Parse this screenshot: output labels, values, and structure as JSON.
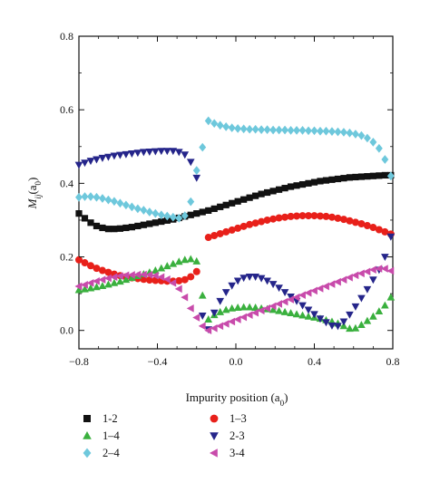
{
  "chart_data": {
    "type": "scatter",
    "xlabel": "Impurity position (a",
    "xlabel_sub": "0",
    "xlabel_end": ")",
    "ylabel": "M",
    "ylabel_sub": "ij",
    "ylabel_arg": "(a",
    "ylabel_arg_sub": "0",
    "ylabel_end": ")",
    "xlim": [
      -0.8,
      0.8
    ],
    "ylim": [
      -0.05,
      0.8
    ],
    "x_ticks": [
      -0.8,
      -0.4,
      0.0,
      0.4,
      0.8
    ],
    "x_tick_labels": [
      "−0.8",
      "−0.4",
      "0.0",
      "0.4",
      "0.8"
    ],
    "y_ticks": [
      0.0,
      0.2,
      0.4,
      0.6,
      0.8
    ],
    "y_tick_labels": [
      "0.0",
      "0.2",
      "0.4",
      "0.6",
      "0.8"
    ],
    "grid": false,
    "legend_placement": "below-plot",
    "series": [
      {
        "name": "1-2",
        "marker": "square",
        "color": "#111111",
        "x": [
          -0.8,
          -0.77,
          -0.74,
          -0.71,
          -0.68,
          -0.65,
          -0.62,
          -0.59,
          -0.56,
          -0.53,
          -0.5,
          -0.47,
          -0.44,
          -0.41,
          -0.38,
          -0.35,
          -0.32,
          -0.29,
          -0.26,
          -0.23,
          -0.2,
          -0.17,
          -0.14,
          -0.11,
          -0.08,
          -0.05,
          -0.02,
          0.01,
          0.04,
          0.07,
          0.1,
          0.13,
          0.16,
          0.19,
          0.22,
          0.25,
          0.28,
          0.31,
          0.34,
          0.37,
          0.4,
          0.43,
          0.46,
          0.49,
          0.52,
          0.55,
          0.58,
          0.61,
          0.64,
          0.67,
          0.7,
          0.73,
          0.76,
          0.79
        ],
        "y": [
          0.318,
          0.305,
          0.293,
          0.284,
          0.279,
          0.276,
          0.276,
          0.277,
          0.279,
          0.281,
          0.284,
          0.287,
          0.29,
          0.293,
          0.296,
          0.299,
          0.302,
          0.306,
          0.31,
          0.314,
          0.318,
          0.322,
          0.326,
          0.331,
          0.336,
          0.341,
          0.346,
          0.351,
          0.356,
          0.361,
          0.366,
          0.371,
          0.375,
          0.379,
          0.383,
          0.387,
          0.391,
          0.394,
          0.397,
          0.4,
          0.403,
          0.406,
          0.408,
          0.41,
          0.412,
          0.414,
          0.416,
          0.417,
          0.418,
          0.419,
          0.42,
          0.421,
          0.422,
          0.422
        ]
      },
      {
        "name": "1–3",
        "marker": "circle",
        "color": "#e8201a",
        "x": [
          -0.8,
          -0.77,
          -0.74,
          -0.71,
          -0.68,
          -0.65,
          -0.62,
          -0.59,
          -0.56,
          -0.53,
          -0.5,
          -0.47,
          -0.44,
          -0.41,
          -0.38,
          -0.35,
          -0.32,
          -0.29,
          -0.26,
          -0.23,
          -0.2,
          -0.14,
          -0.11,
          -0.08,
          -0.05,
          -0.02,
          0.01,
          0.04,
          0.07,
          0.1,
          0.13,
          0.16,
          0.19,
          0.22,
          0.25,
          0.28,
          0.31,
          0.34,
          0.37,
          0.4,
          0.43,
          0.46,
          0.49,
          0.52,
          0.55,
          0.58,
          0.61,
          0.64,
          0.67,
          0.7,
          0.73,
          0.76,
          0.79
        ],
        "y": [
          0.192,
          0.184,
          0.176,
          0.169,
          0.163,
          0.158,
          0.153,
          0.149,
          0.146,
          0.143,
          0.141,
          0.139,
          0.137,
          0.136,
          0.135,
          0.134,
          0.134,
          0.135,
          0.138,
          0.146,
          0.16,
          0.253,
          0.258,
          0.263,
          0.268,
          0.273,
          0.278,
          0.283,
          0.288,
          0.292,
          0.296,
          0.3,
          0.303,
          0.306,
          0.308,
          0.31,
          0.311,
          0.312,
          0.312,
          0.312,
          0.311,
          0.31,
          0.308,
          0.305,
          0.302,
          0.298,
          0.294,
          0.29,
          0.285,
          0.28,
          0.274,
          0.268,
          0.262
        ]
      },
      {
        "name": "1–4",
        "marker": "triangle-up",
        "color": "#3ab03e",
        "x": [
          -0.8,
          -0.77,
          -0.74,
          -0.71,
          -0.68,
          -0.65,
          -0.62,
          -0.59,
          -0.56,
          -0.53,
          -0.5,
          -0.47,
          -0.44,
          -0.41,
          -0.38,
          -0.35,
          -0.32,
          -0.29,
          -0.26,
          -0.23,
          -0.2,
          -0.17,
          -0.14,
          -0.11,
          -0.08,
          -0.05,
          -0.02,
          0.01,
          0.04,
          0.07,
          0.1,
          0.13,
          0.16,
          0.19,
          0.22,
          0.25,
          0.28,
          0.31,
          0.34,
          0.37,
          0.4,
          0.43,
          0.46,
          0.49,
          0.52,
          0.55,
          0.58,
          0.61,
          0.64,
          0.67,
          0.7,
          0.73,
          0.76,
          0.79
        ],
        "y": [
          0.11,
          0.112,
          0.115,
          0.118,
          0.121,
          0.125,
          0.129,
          0.133,
          0.138,
          0.143,
          0.148,
          0.153,
          0.158,
          0.163,
          0.169,
          0.175,
          0.181,
          0.187,
          0.192,
          0.194,
          0.188,
          0.095,
          0.03,
          0.042,
          0.05,
          0.056,
          0.06,
          0.062,
          0.063,
          0.063,
          0.062,
          0.06,
          0.058,
          0.056,
          0.053,
          0.05,
          0.047,
          0.044,
          0.041,
          0.038,
          0.035,
          0.032,
          0.028,
          0.024,
          0.019,
          0.012,
          0.005,
          0.006,
          0.015,
          0.026,
          0.038,
          0.052,
          0.068,
          0.09
        ]
      },
      {
        "name": "2-3",
        "marker": "triangle-down",
        "color": "#25258a",
        "x": [
          -0.8,
          -0.77,
          -0.74,
          -0.71,
          -0.68,
          -0.65,
          -0.62,
          -0.59,
          -0.56,
          -0.53,
          -0.5,
          -0.47,
          -0.44,
          -0.41,
          -0.38,
          -0.35,
          -0.32,
          -0.29,
          -0.26,
          -0.23,
          -0.2,
          -0.17,
          -0.14,
          -0.11,
          -0.08,
          -0.05,
          -0.02,
          0.01,
          0.04,
          0.07,
          0.1,
          0.13,
          0.16,
          0.19,
          0.22,
          0.25,
          0.28,
          0.31,
          0.34,
          0.37,
          0.4,
          0.43,
          0.46,
          0.49,
          0.52,
          0.55,
          0.58,
          0.61,
          0.64,
          0.67,
          0.7,
          0.73,
          0.76,
          0.79
        ],
        "y": [
          0.45,
          0.456,
          0.461,
          0.465,
          0.469,
          0.472,
          0.475,
          0.477,
          0.479,
          0.481,
          0.483,
          0.485,
          0.486,
          0.487,
          0.488,
          0.488,
          0.488,
          0.485,
          0.478,
          0.458,
          0.415,
          0.04,
          0.003,
          0.048,
          0.08,
          0.104,
          0.122,
          0.135,
          0.143,
          0.146,
          0.146,
          0.142,
          0.135,
          0.126,
          0.116,
          0.104,
          0.092,
          0.08,
          0.068,
          0.056,
          0.044,
          0.032,
          0.022,
          0.013,
          0.012,
          0.024,
          0.043,
          0.065,
          0.088,
          0.112,
          0.138,
          0.165,
          0.2,
          0.255
        ]
      },
      {
        "name": "2–4",
        "marker": "diamond",
        "color": "#6ec8dc",
        "x": [
          -0.8,
          -0.77,
          -0.74,
          -0.71,
          -0.68,
          -0.65,
          -0.62,
          -0.59,
          -0.56,
          -0.53,
          -0.5,
          -0.47,
          -0.44,
          -0.41,
          -0.38,
          -0.35,
          -0.32,
          -0.29,
          -0.26,
          -0.23,
          -0.2,
          -0.17,
          -0.14,
          -0.11,
          -0.08,
          -0.05,
          -0.02,
          0.01,
          0.04,
          0.07,
          0.1,
          0.13,
          0.16,
          0.19,
          0.22,
          0.25,
          0.28,
          0.31,
          0.34,
          0.37,
          0.4,
          0.43,
          0.46,
          0.49,
          0.52,
          0.55,
          0.58,
          0.61,
          0.64,
          0.67,
          0.7,
          0.73,
          0.76,
          0.79
        ],
        "y": [
          0.362,
          0.364,
          0.364,
          0.362,
          0.359,
          0.355,
          0.351,
          0.346,
          0.341,
          0.336,
          0.331,
          0.327,
          0.322,
          0.318,
          0.314,
          0.311,
          0.308,
          0.305,
          0.312,
          0.35,
          0.435,
          0.498,
          0.57,
          0.563,
          0.558,
          0.554,
          0.551,
          0.549,
          0.548,
          0.547,
          0.547,
          0.546,
          0.546,
          0.545,
          0.545,
          0.545,
          0.544,
          0.544,
          0.544,
          0.543,
          0.543,
          0.542,
          0.542,
          0.541,
          0.54,
          0.539,
          0.537,
          0.534,
          0.53,
          0.523,
          0.512,
          0.495,
          0.465,
          0.42
        ]
      },
      {
        "name": "3-4",
        "marker": "triangle-left",
        "color": "#c84bab",
        "x": [
          -0.8,
          -0.77,
          -0.74,
          -0.71,
          -0.68,
          -0.65,
          -0.62,
          -0.59,
          -0.56,
          -0.53,
          -0.5,
          -0.47,
          -0.44,
          -0.41,
          -0.38,
          -0.35,
          -0.32,
          -0.29,
          -0.26,
          -0.23,
          -0.2,
          -0.17,
          -0.14,
          -0.11,
          -0.08,
          -0.05,
          -0.02,
          0.01,
          0.04,
          0.07,
          0.1,
          0.13,
          0.16,
          0.19,
          0.22,
          0.25,
          0.28,
          0.31,
          0.34,
          0.37,
          0.4,
          0.43,
          0.46,
          0.49,
          0.52,
          0.55,
          0.58,
          0.61,
          0.64,
          0.67,
          0.7,
          0.73,
          0.76,
          0.79
        ],
        "y": [
          0.12,
          0.124,
          0.129,
          0.134,
          0.138,
          0.142,
          0.145,
          0.148,
          0.15,
          0.151,
          0.152,
          0.152,
          0.151,
          0.149,
          0.145,
          0.139,
          0.129,
          0.113,
          0.09,
          0.06,
          0.035,
          0.012,
          0.0,
          0.006,
          0.012,
          0.018,
          0.024,
          0.03,
          0.036,
          0.042,
          0.048,
          0.054,
          0.06,
          0.066,
          0.072,
          0.078,
          0.084,
          0.09,
          0.096,
          0.102,
          0.108,
          0.114,
          0.12,
          0.126,
          0.132,
          0.138,
          0.144,
          0.15,
          0.155,
          0.16,
          0.165,
          0.168,
          0.168,
          0.162
        ]
      }
    ],
    "legend": [
      {
        "label": "1-2",
        "marker": "square",
        "color": "#111111"
      },
      {
        "label": "1–3",
        "marker": "circle",
        "color": "#e8201a"
      },
      {
        "label": "1–4",
        "marker": "triangle-up",
        "color": "#3ab03e"
      },
      {
        "label": "2-3",
        "marker": "triangle-down",
        "color": "#25258a"
      },
      {
        "label": "2–4",
        "marker": "diamond",
        "color": "#6ec8dc"
      },
      {
        "label": "3-4",
        "marker": "triangle-left",
        "color": "#c84bab"
      }
    ]
  }
}
